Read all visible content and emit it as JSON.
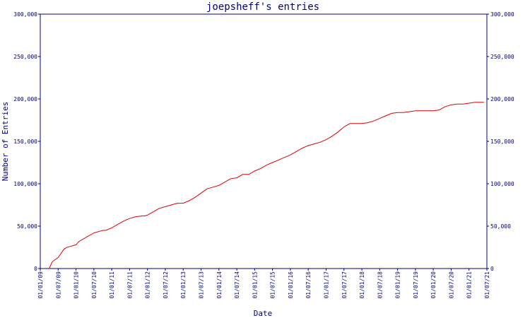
{
  "chart_data": {
    "type": "line",
    "title": "joepsheff's entries",
    "xlabel": "Date",
    "ylabel": "Number of Entries",
    "y_ticks": [
      "0",
      "50,000",
      "100,000",
      "150,000",
      "200,000",
      "250,000",
      "300,000"
    ],
    "y_tick_values": [
      0,
      50000,
      100000,
      150000,
      200000,
      250000,
      300000
    ],
    "ylim": [
      0,
      300000
    ],
    "x_ticks": [
      "01/01/09",
      "01/07/09",
      "01/01/10",
      "01/07/10",
      "01/01/11",
      "01/07/11",
      "01/01/12",
      "01/07/12",
      "01/01/13",
      "01/07/13",
      "01/01/14",
      "01/07/14",
      "01/01/15",
      "01/07/15",
      "01/01/16",
      "01/07/16",
      "01/01/17",
      "01/07/17",
      "01/01/18",
      "01/07/18",
      "01/01/19",
      "01/07/19",
      "01/01/20",
      "01/07/20",
      "01/01/21",
      "01/07/21"
    ],
    "xlim": [
      "01/01/09",
      "01/07/21"
    ],
    "grid": false,
    "series": [
      {
        "color": "#e00000",
        "x": [
          "01/04/09",
          "01/05/09",
          "01/07/09",
          "01/08/09",
          "01/09/09",
          "01/10/09",
          "01/11/09",
          "01/12/09",
          "01/01/10",
          "01/02/10",
          "01/04/10",
          "01/06/10",
          "01/07/10",
          "01/09/10",
          "01/10/10",
          "01/11/10",
          "01/01/11",
          "01/03/11",
          "01/05/11",
          "01/07/11",
          "01/09/11",
          "01/11/11",
          "01/12/11",
          "01/01/12",
          "01/03/12",
          "01/05/12",
          "01/07/12",
          "01/09/12",
          "01/11/12",
          "01/01/13",
          "01/03/13",
          "01/05/13",
          "01/07/13",
          "01/09/13",
          "01/11/13",
          "01/01/14",
          "01/03/14",
          "01/05/14",
          "01/07/14",
          "01/09/14",
          "01/11/14",
          "01/01/15",
          "01/03/15",
          "01/05/15",
          "01/07/15",
          "01/09/15",
          "01/11/15",
          "01/01/16",
          "01/03/16",
          "01/05/16",
          "01/07/16",
          "01/09/16",
          "01/11/16",
          "01/01/17",
          "01/03/17",
          "01/05/17",
          "01/07/17",
          "01/09/17",
          "01/11/17",
          "01/01/18",
          "01/03/18",
          "01/05/18",
          "01/07/18",
          "01/09/18",
          "01/11/18",
          "01/01/19",
          "01/03/19",
          "01/05/19",
          "01/07/19",
          "01/09/19",
          "01/11/19",
          "01/01/20",
          "01/03/20",
          "01/05/20",
          "01/07/20",
          "01/09/20",
          "01/11/20",
          "01/01/21",
          "01/03/21",
          "01/05/21",
          "01/06/21"
        ],
        "y": [
          0,
          8000,
          13000,
          18000,
          23000,
          25000,
          26000,
          27000,
          28000,
          32000,
          36000,
          40000,
          42000,
          44000,
          45000,
          45000,
          48000,
          52000,
          56000,
          59000,
          61000,
          62000,
          62000,
          63000,
          67000,
          71000,
          73000,
          75000,
          77000,
          77000,
          80000,
          84000,
          89000,
          94000,
          96000,
          98000,
          102000,
          106000,
          107000,
          111000,
          111000,
          115000,
          118000,
          122000,
          125000,
          128000,
          131000,
          134000,
          138000,
          142000,
          145000,
          147000,
          149000,
          152000,
          156000,
          161000,
          167000,
          171000,
          171000,
          171000,
          172000,
          174000,
          177000,
          180000,
          183000,
          184000,
          184000,
          185000,
          186000,
          186000,
          186000,
          186000,
          187000,
          191000,
          193000,
          194000,
          194000,
          195000,
          196000,
          196000,
          196000
        ]
      }
    ]
  }
}
